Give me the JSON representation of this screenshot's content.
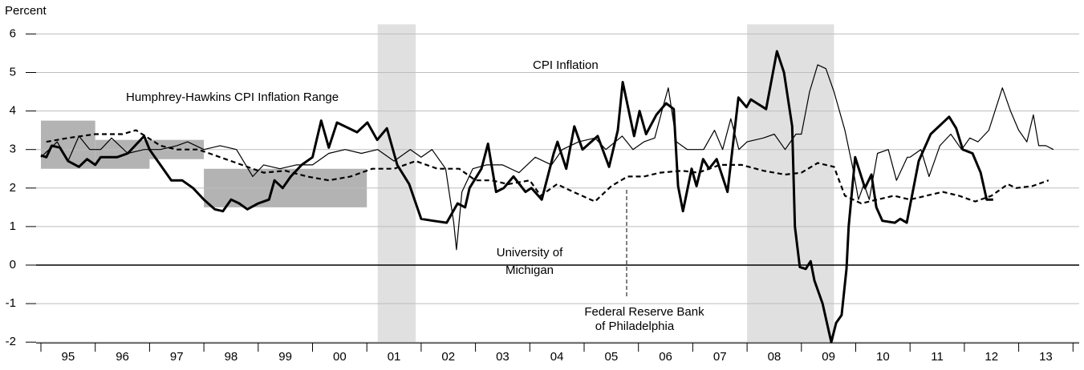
{
  "chart_data": {
    "type": "line",
    "y_label": "Percent",
    "xlim": [
      1995,
      2014.2
    ],
    "ylim": [
      -2,
      6
    ],
    "yticks": [
      -2,
      -1,
      0,
      1,
      2,
      3,
      4,
      5,
      6
    ],
    "xticks": [
      1995,
      1996,
      1997,
      1998,
      1999,
      2000,
      2001,
      2002,
      2003,
      2004,
      2005,
      2006,
      2007,
      2008,
      2009,
      2010,
      2011,
      2012,
      2013,
      2014
    ],
    "xtick_labels": [
      {
        "value": 1995.5,
        "label": "95"
      },
      {
        "value": 1996.5,
        "label": "96"
      },
      {
        "value": 1997.5,
        "label": "97"
      },
      {
        "value": 1998.5,
        "label": "98"
      },
      {
        "value": 1999.5,
        "label": "99"
      },
      {
        "value": 2000.5,
        "label": "00"
      },
      {
        "value": 2001.5,
        "label": "01"
      },
      {
        "value": 2002.5,
        "label": "02"
      },
      {
        "value": 2003.5,
        "label": "03"
      },
      {
        "value": 2004.5,
        "label": "04"
      },
      {
        "value": 2005.5,
        "label": "05"
      },
      {
        "value": 2006.5,
        "label": "06"
      },
      {
        "value": 2007.5,
        "label": "07"
      },
      {
        "value": 2008.5,
        "label": "08"
      },
      {
        "value": 2009.5,
        "label": "09"
      },
      {
        "value": 2010.5,
        "label": "10"
      },
      {
        "value": 2011.5,
        "label": "11"
      },
      {
        "value": 2012.5,
        "label": "12"
      },
      {
        "value": 2013.5,
        "label": "13"
      }
    ],
    "grid": true,
    "recessions": [
      [
        2001.2,
        2001.9
      ],
      [
        2008.0,
        2009.6
      ]
    ],
    "recession_color": "#e0e0e0",
    "inflation_ranges_label": "Humphrey-Hawkins CPI Inflation Range",
    "inflation_ranges_color": "#b3b3b3",
    "inflation_ranges": [
      {
        "x": [
          1995,
          1996
        ],
        "y": [
          2.5,
          3.75
        ]
      },
      {
        "x": [
          1996,
          1997
        ],
        "y": [
          2.5,
          3.25
        ]
      },
      {
        "x": [
          1997,
          1998
        ],
        "y": [
          2.75,
          3.25
        ]
      },
      {
        "x": [
          1998,
          2001
        ],
        "y": [
          1.5,
          2.5
        ]
      }
    ],
    "series": [
      {
        "label_lines": [
          "CPI Inflation"
        ],
        "color": "#000000",
        "width": 3,
        "dash": "solid",
        "x": [
          1995.0,
          1995.1,
          1995.2,
          1995.35,
          1995.5,
          1995.7,
          1995.85,
          1996.0,
          1996.1,
          1996.4,
          1996.6,
          1996.9,
          1997.0,
          1997.2,
          1997.4,
          1997.6,
          1997.8,
          1998.0,
          1998.2,
          1998.35,
          1998.5,
          1998.65,
          1998.8,
          1999.0,
          1999.2,
          1999.3,
          1999.45,
          1999.6,
          1999.8,
          2000.0,
          2000.16,
          2000.3,
          2000.45,
          2000.82,
          2001.01,
          2001.19,
          2001.37,
          2001.56,
          2001.78,
          2002.0,
          2002.22,
          2002.47,
          2002.67,
          2002.81,
          2002.89,
          2003.11,
          2003.23,
          2003.29,
          2003.38,
          2003.52,
          2003.7,
          2003.92,
          2004.03,
          2004.22,
          2004.44,
          2004.51,
          2004.67,
          2004.82,
          2004.97,
          2005.25,
          2005.46,
          2005.62,
          2005.71,
          2005.92,
          2006.02,
          2006.14,
          2006.33,
          2006.51,
          2006.65,
          2006.73,
          2006.82,
          2006.98,
          2007.07,
          2007.19,
          2007.3,
          2007.44,
          2007.64,
          2007.84,
          2007.99,
          2008.07,
          2008.35,
          2008.55,
          2008.68,
          2008.83,
          2008.88,
          2008.97,
          2009.08,
          2009.17,
          2009.24,
          2009.39,
          2009.55,
          2009.64,
          2009.74,
          2009.83,
          2009.87,
          2009.99,
          2010.17,
          2010.29,
          2010.38,
          2010.49,
          2010.72,
          2010.82,
          2010.94,
          2011.16,
          2011.38,
          2011.72,
          2011.85,
          2011.97,
          2012.15,
          2012.3,
          2012.41,
          2012.53
        ],
        "values": [
          2.85,
          2.8,
          3.1,
          3.05,
          2.7,
          2.55,
          2.75,
          2.6,
          2.8,
          2.8,
          2.9,
          3.35,
          3.0,
          2.6,
          2.2,
          2.2,
          2.0,
          1.7,
          1.45,
          1.4,
          1.7,
          1.6,
          1.45,
          1.6,
          1.7,
          2.2,
          2.0,
          2.3,
          2.6,
          2.8,
          3.75,
          3.05,
          3.7,
          3.45,
          3.7,
          3.25,
          3.55,
          2.6,
          2.1,
          1.2,
          1.15,
          1.1,
          1.6,
          1.5,
          2.0,
          2.5,
          3.15,
          2.65,
          1.9,
          2.0,
          2.3,
          1.9,
          2.0,
          1.7,
          2.9,
          3.2,
          2.5,
          3.6,
          3.0,
          3.35,
          2.55,
          3.5,
          4.75,
          3.35,
          4.0,
          3.4,
          3.9,
          4.2,
          4.05,
          2.05,
          1.4,
          2.5,
          2.05,
          2.75,
          2.5,
          2.75,
          1.9,
          4.35,
          4.1,
          4.3,
          4.05,
          5.55,
          5.0,
          3.6,
          1.0,
          -0.05,
          -0.1,
          0.1,
          -0.4,
          -1.0,
          -2.0,
          -1.5,
          -1.3,
          -0.1,
          1.0,
          2.8,
          2.0,
          2.35,
          1.5,
          1.15,
          1.1,
          1.2,
          1.1,
          2.7,
          3.4,
          3.85,
          3.55,
          3.0,
          2.9,
          2.4,
          1.7,
          1.7
        ]
      },
      {
        "label_lines": [
          "University of",
          "Michigan"
        ],
        "color": "#000000",
        "width": 1.2,
        "dash": "solid",
        "x": [
          1995.0,
          1995.3,
          1995.5,
          1995.7,
          1995.9,
          1996.1,
          1996.3,
          1996.6,
          1996.9,
          1997.2,
          1997.5,
          1997.7,
          1998.0,
          1998.3,
          1998.6,
          1998.9,
          1999.1,
          1999.4,
          1999.7,
          2000.0,
          2000.3,
          2000.6,
          2000.9,
          2001.2,
          2001.5,
          2001.8,
          2002.0,
          2002.2,
          2002.45,
          2002.6,
          2002.65,
          2002.75,
          2002.95,
          2003.2,
          2003.5,
          2003.8,
          2004.1,
          2004.4,
          2004.6,
          2004.9,
          2005.2,
          2005.4,
          2005.7,
          2005.9,
          2006.1,
          2006.3,
          2006.45,
          2006.55,
          2006.7,
          2006.9,
          2007.2,
          2007.4,
          2007.55,
          2007.7,
          2007.85,
          2008.0,
          2008.3,
          2008.5,
          2008.7,
          2008.9,
          2009.0,
          2009.15,
          2009.3,
          2009.45,
          2009.6,
          2009.8,
          2009.95,
          2010.05,
          2010.15,
          2010.25,
          2010.4,
          2010.6,
          2010.75,
          2010.95,
          2011.0,
          2011.2,
          2011.35,
          2011.55,
          2011.75,
          2011.95,
          2012.1,
          2012.25,
          2012.45,
          2012.7,
          2012.85,
          2013.0,
          2013.15,
          2013.27,
          2013.37,
          2013.5,
          2013.64
        ],
        "values": [
          2.8,
          3.2,
          2.7,
          3.35,
          3.0,
          3.0,
          3.3,
          2.9,
          3.0,
          3.0,
          3.1,
          3.2,
          3.0,
          3.1,
          3.0,
          2.3,
          2.6,
          2.5,
          2.6,
          2.6,
          2.9,
          3.0,
          2.9,
          3.0,
          2.7,
          3.0,
          2.8,
          3.0,
          2.5,
          1.1,
          0.4,
          1.9,
          2.5,
          2.6,
          2.6,
          2.4,
          2.8,
          2.6,
          3.0,
          3.2,
          3.3,
          3.0,
          3.35,
          3.0,
          3.2,
          3.3,
          4.1,
          4.6,
          3.2,
          3.0,
          3.0,
          3.5,
          3.0,
          3.8,
          3.0,
          3.2,
          3.3,
          3.4,
          3.0,
          3.4,
          3.4,
          4.5,
          5.2,
          5.1,
          4.5,
          3.5,
          2.5,
          1.7,
          2.1,
          1.7,
          2.9,
          3.0,
          2.2,
          2.8,
          2.8,
          3.0,
          2.3,
          3.1,
          3.4,
          3.0,
          3.3,
          3.2,
          3.5,
          4.6,
          4.0,
          3.5,
          3.2,
          3.9,
          3.1,
          3.1,
          3.0
        ]
      },
      {
        "label_lines": [
          "Federal Reserve Bank",
          "of Philadelphia"
        ],
        "color": "#000000",
        "width": 2.2,
        "dash": "dashed",
        "x": [
          1995.1,
          1995.5,
          1996.0,
          1996.5,
          1996.75,
          1997.2,
          1997.5,
          1997.9,
          1998.3,
          1998.7,
          1999.1,
          1999.5,
          1999.9,
          2000.3,
          2000.7,
          2001.1,
          2001.5,
          2001.9,
          2002.3,
          2002.7,
          2003.0,
          2003.3,
          2003.6,
          2004.0,
          2004.2,
          2004.5,
          2004.8,
          2005.2,
          2005.5,
          2005.8,
          2006.1,
          2006.4,
          2006.8,
          2007.1,
          2007.5,
          2007.9,
          2008.3,
          2008.7,
          2009.0,
          2009.3,
          2009.6,
          2009.8,
          2010.1,
          2010.4,
          2010.7,
          2011.0,
          2011.3,
          2011.6,
          2011.9,
          2012.2,
          2012.5,
          2012.8,
          2012.95,
          2013.25,
          2013.55
        ],
        "values": [
          3.2,
          3.3,
          3.4,
          3.4,
          3.5,
          3.1,
          3.0,
          3.0,
          2.8,
          2.6,
          2.4,
          2.45,
          2.3,
          2.2,
          2.3,
          2.5,
          2.5,
          2.7,
          2.5,
          2.5,
          2.2,
          2.2,
          2.1,
          2.2,
          1.8,
          2.1,
          1.9,
          1.65,
          2.05,
          2.3,
          2.3,
          2.4,
          2.45,
          2.4,
          2.6,
          2.6,
          2.45,
          2.35,
          2.4,
          2.65,
          2.55,
          1.8,
          1.6,
          1.7,
          1.8,
          1.7,
          1.8,
          1.9,
          1.8,
          1.65,
          1.8,
          2.1,
          2.0,
          2.05,
          2.2
        ]
      }
    ]
  }
}
